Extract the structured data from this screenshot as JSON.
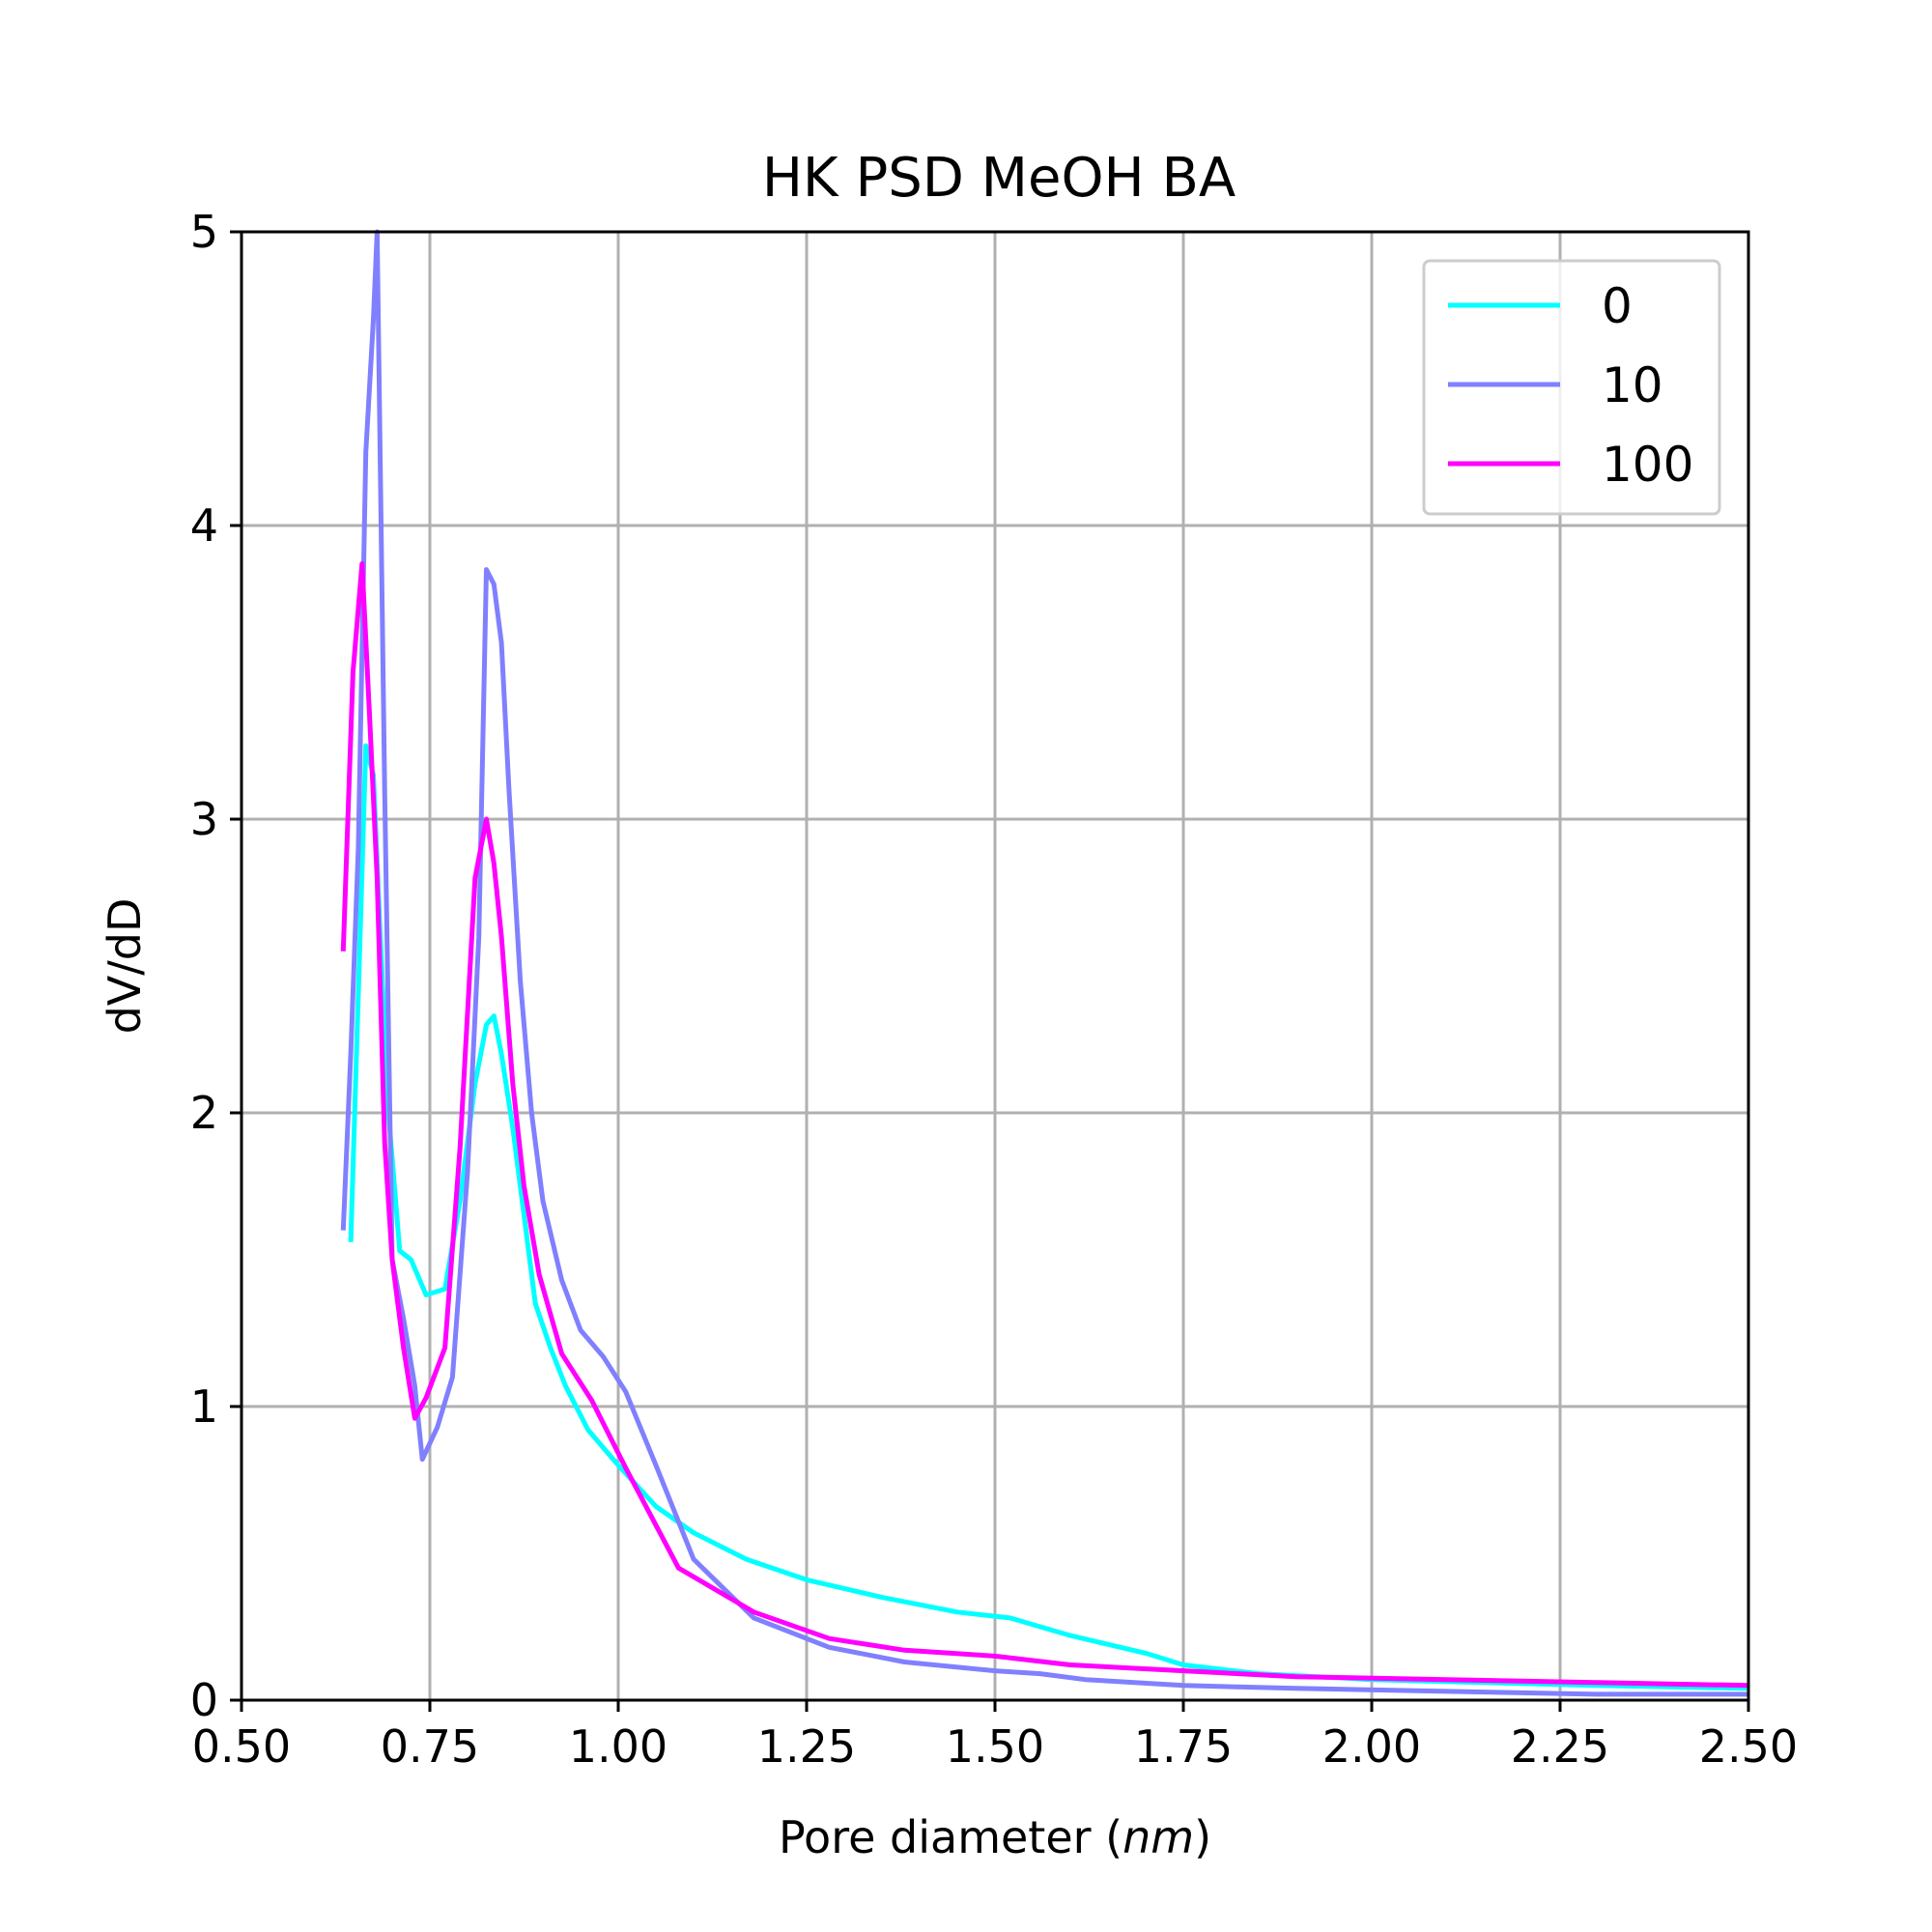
{
  "chart_data": {
    "type": "line",
    "title": "HK PSD MeOH BA",
    "xlabel_prefix": "Pore diameter (",
    "xlabel_unit": "nm",
    "xlabel_suffix": ")",
    "ylabel": "dV/dD",
    "xlim": [
      0.5,
      2.5
    ],
    "ylim": [
      0,
      5
    ],
    "grid": true,
    "legend_position": "top-right",
    "x_ticks": [
      0.5,
      0.75,
      1.0,
      1.25,
      1.5,
      1.75,
      2.0,
      2.25,
      2.5
    ],
    "x_tick_labels": [
      "0.50",
      "0.75",
      "1.00",
      "1.25",
      "1.50",
      "1.75",
      "2.00",
      "2.25",
      "2.50"
    ],
    "y_ticks": [
      0,
      1,
      2,
      3,
      4,
      5
    ],
    "y_tick_labels": [
      "0",
      "1",
      "2",
      "3",
      "4",
      "5"
    ],
    "series": [
      {
        "name": "0",
        "color": "#00ffff",
        "x": [
          0.645,
          0.655,
          0.665,
          0.675,
          0.685,
          0.695,
          0.71,
          0.725,
          0.745,
          0.77,
          0.79,
          0.81,
          0.825,
          0.835,
          0.845,
          0.86,
          0.875,
          0.89,
          0.91,
          0.93,
          0.96,
          1.0,
          1.05,
          1.1,
          1.17,
          1.25,
          1.35,
          1.45,
          1.52,
          1.6,
          1.7,
          1.75,
          1.85,
          2.0,
          2.15,
          2.3,
          2.5
        ],
        "y": [
          1.56,
          2.4,
          3.25,
          3.15,
          2.55,
          2.0,
          1.53,
          1.5,
          1.38,
          1.4,
          1.7,
          2.1,
          2.3,
          2.33,
          2.2,
          1.95,
          1.65,
          1.35,
          1.2,
          1.07,
          0.92,
          0.8,
          0.66,
          0.57,
          0.48,
          0.41,
          0.35,
          0.3,
          0.28,
          0.22,
          0.16,
          0.12,
          0.09,
          0.07,
          0.06,
          0.05,
          0.04
        ]
      },
      {
        "name": "10",
        "color": "#8080ff",
        "x": [
          0.635,
          0.645,
          0.655,
          0.665,
          0.675,
          0.68,
          0.69,
          0.7,
          0.715,
          0.73,
          0.74,
          0.76,
          0.78,
          0.8,
          0.815,
          0.825,
          0.835,
          0.845,
          0.855,
          0.87,
          0.885,
          0.9,
          0.925,
          0.95,
          0.98,
          1.01,
          1.05,
          1.1,
          1.18,
          1.28,
          1.38,
          1.5,
          1.56,
          1.62,
          1.75,
          1.9,
          2.1,
          2.3,
          2.5
        ],
        "y": [
          1.6,
          2.2,
          2.9,
          4.25,
          4.7,
          5.0,
          3.1,
          1.5,
          1.3,
          1.07,
          0.82,
          0.93,
          1.1,
          1.8,
          2.6,
          3.85,
          3.8,
          3.6,
          3.1,
          2.45,
          2.0,
          1.7,
          1.43,
          1.26,
          1.17,
          1.05,
          0.8,
          0.48,
          0.28,
          0.18,
          0.13,
          0.1,
          0.09,
          0.07,
          0.05,
          0.04,
          0.03,
          0.02,
          0.02
        ]
      },
      {
        "name": "100",
        "color": "#ff00ff",
        "x": [
          0.635,
          0.648,
          0.66,
          0.67,
          0.68,
          0.69,
          0.7,
          0.715,
          0.73,
          0.745,
          0.77,
          0.79,
          0.81,
          0.825,
          0.835,
          0.845,
          0.86,
          0.875,
          0.895,
          0.925,
          0.965,
          1.01,
          1.08,
          1.18,
          1.28,
          1.38,
          1.5,
          1.6,
          1.75,
          1.9,
          2.1,
          2.3,
          2.5
        ],
        "y": [
          2.55,
          3.5,
          3.87,
          3.35,
          2.8,
          1.9,
          1.5,
          1.2,
          0.96,
          1.03,
          1.2,
          1.88,
          2.8,
          3.0,
          2.85,
          2.6,
          2.1,
          1.75,
          1.45,
          1.18,
          1.02,
          0.79,
          0.45,
          0.3,
          0.21,
          0.17,
          0.15,
          0.12,
          0.1,
          0.08,
          0.07,
          0.06,
          0.05
        ]
      }
    ]
  }
}
